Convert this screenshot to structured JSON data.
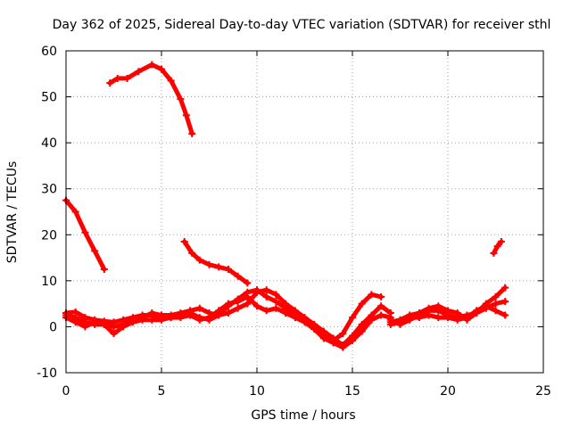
{
  "chart_data": {
    "type": "scatter",
    "title": "Day 362 of 2025, Sidereal Day-to-day VTEC variation (SDTVAR) for receiver sthl",
    "xlabel": "GPS time / hours",
    "ylabel": "SDTVAR / TECUs",
    "xlim": [
      0,
      25
    ],
    "ylim": [
      -10,
      60
    ],
    "xticks": [
      0,
      5,
      10,
      15,
      20,
      25
    ],
    "yticks": [
      -10,
      0,
      10,
      20,
      30,
      40,
      50,
      60
    ],
    "xtick_labels": [
      "0",
      "5",
      "10",
      "15",
      "20",
      "25"
    ],
    "ytick_labels": [
      "-10",
      "0",
      "10",
      "20",
      "30",
      "40",
      "50",
      "60"
    ],
    "grid": true,
    "marker": "+",
    "color": "#ff0000",
    "series": [
      {
        "name": "arc-early-high",
        "x": [
          0.0,
          0.5,
          1.0,
          1.5,
          2.0
        ],
        "y": [
          27.5,
          25.0,
          20.5,
          16.5,
          12.5
        ]
      },
      {
        "name": "arc-midday-peak",
        "x": [
          2.3,
          2.7,
          3.2,
          3.8,
          4.5,
          5.0,
          5.5,
          6.0,
          6.3,
          6.6
        ],
        "y": [
          53.0,
          54.0,
          54.0,
          55.5,
          57.0,
          56.0,
          53.5,
          49.5,
          46.0,
          42.0
        ]
      },
      {
        "name": "arc-afternoon-decay",
        "x": [
          6.2,
          6.6,
          7.0,
          7.5,
          8.0,
          8.5,
          9.0,
          9.5
        ],
        "y": [
          18.5,
          16.0,
          14.5,
          13.5,
          13.0,
          12.5,
          11.0,
          9.5
        ]
      },
      {
        "name": "arc-late-rise",
        "x": [
          22.4,
          22.6,
          22.8
        ],
        "y": [
          16.0,
          17.5,
          18.5
        ]
      },
      {
        "name": "band-low-a",
        "x": [
          0.0,
          0.5,
          1.0,
          1.5,
          2.0,
          2.5,
          3.0,
          3.5,
          4.0,
          4.5,
          5.0,
          5.5,
          6.0,
          6.5,
          7.0,
          7.5,
          8.0,
          8.5,
          9.0,
          9.5,
          10.0,
          10.5,
          11.0,
          11.5,
          12.0,
          12.5,
          13.0,
          13.5,
          14.0,
          14.5,
          15.0,
          15.5,
          16.0,
          16.5
        ],
        "y": [
          3.0,
          3.2,
          2.0,
          1.5,
          1.2,
          1.0,
          1.5,
          2.0,
          2.5,
          2.5,
          2.0,
          2.0,
          2.5,
          3.0,
          2.0,
          1.5,
          2.5,
          4.5,
          6.0,
          7.5,
          8.0,
          6.5,
          5.5,
          4.0,
          3.0,
          1.5,
          0.0,
          -1.5,
          -3.0,
          -1.5,
          2.0,
          5.0,
          7.0,
          6.5
        ]
      },
      {
        "name": "band-low-b",
        "x": [
          0.0,
          0.5,
          1.0,
          1.5,
          2.0,
          2.5,
          3.0,
          3.5,
          4.0,
          4.5,
          5.0,
          5.5,
          6.0,
          6.5,
          7.0,
          7.5,
          8.0,
          8.5,
          9.0,
          9.5,
          10.0,
          10.5,
          11.0,
          11.5,
          12.0,
          12.5,
          13.0,
          13.5,
          14.0,
          14.5,
          15.0,
          15.5,
          16.0,
          16.5,
          17.0
        ],
        "y": [
          2.5,
          2.0,
          1.0,
          0.5,
          0.5,
          0.0,
          0.5,
          1.5,
          2.0,
          3.0,
          2.5,
          2.5,
          3.0,
          3.5,
          4.0,
          3.0,
          2.5,
          3.0,
          4.0,
          5.0,
          7.5,
          8.0,
          7.0,
          5.0,
          3.5,
          2.0,
          0.5,
          -1.0,
          -2.5,
          -4.0,
          -2.0,
          0.5,
          2.5,
          4.5,
          3.0
        ]
      },
      {
        "name": "band-low-c",
        "x": [
          0.0,
          0.5,
          1.0,
          1.5,
          2.0,
          2.5,
          3.0,
          3.5,
          4.0,
          4.5,
          5.0,
          5.5,
          6.0,
          6.5,
          7.0,
          7.5,
          8.0,
          8.5,
          9.0,
          9.5,
          10.0,
          10.5,
          11.0,
          11.5,
          12.0,
          12.5,
          13.0,
          13.5,
          14.0,
          14.5,
          15.0,
          15.5,
          16.0,
          16.5,
          17.0
        ],
        "y": [
          2.0,
          1.0,
          0.0,
          1.0,
          0.5,
          -1.5,
          0.0,
          1.0,
          1.5,
          1.5,
          1.5,
          2.0,
          2.0,
          2.5,
          1.5,
          2.0,
          3.5,
          5.0,
          5.5,
          6.5,
          4.5,
          3.5,
          4.0,
          3.0,
          2.0,
          1.0,
          -0.5,
          -2.5,
          -3.5,
          -4.5,
          -3.0,
          -1.0,
          1.5,
          2.5,
          2.0
        ]
      },
      {
        "name": "band-evening",
        "x": [
          17.0,
          17.5,
          18.0,
          18.5,
          19.0,
          19.5,
          20.0,
          20.5,
          21.0,
          21.5,
          22.0,
          22.5,
          23.0
        ],
        "y": [
          1.5,
          0.5,
          1.5,
          2.5,
          3.5,
          3.5,
          2.5,
          2.0,
          2.5,
          3.0,
          4.0,
          5.0,
          5.5
        ]
      },
      {
        "name": "band-evening-b",
        "x": [
          17.0,
          17.5,
          18.0,
          18.5,
          19.0,
          19.5,
          20.0,
          20.5,
          21.0,
          21.5,
          22.0,
          22.5,
          23.0
        ],
        "y": [
          1.0,
          1.5,
          2.5,
          3.0,
          4.0,
          4.5,
          3.5,
          3.0,
          1.5,
          3.0,
          5.0,
          6.5,
          8.5
        ]
      },
      {
        "name": "band-evening-c",
        "x": [
          17.0,
          17.5,
          18.0,
          18.5,
          19.0,
          19.5,
          20.0,
          20.5,
          21.0,
          21.5,
          22.0,
          22.5,
          23.0
        ],
        "y": [
          0.5,
          1.0,
          2.0,
          2.0,
          2.5,
          2.0,
          2.0,
          1.5,
          2.0,
          3.5,
          4.5,
          3.5,
          2.5
        ]
      }
    ]
  }
}
